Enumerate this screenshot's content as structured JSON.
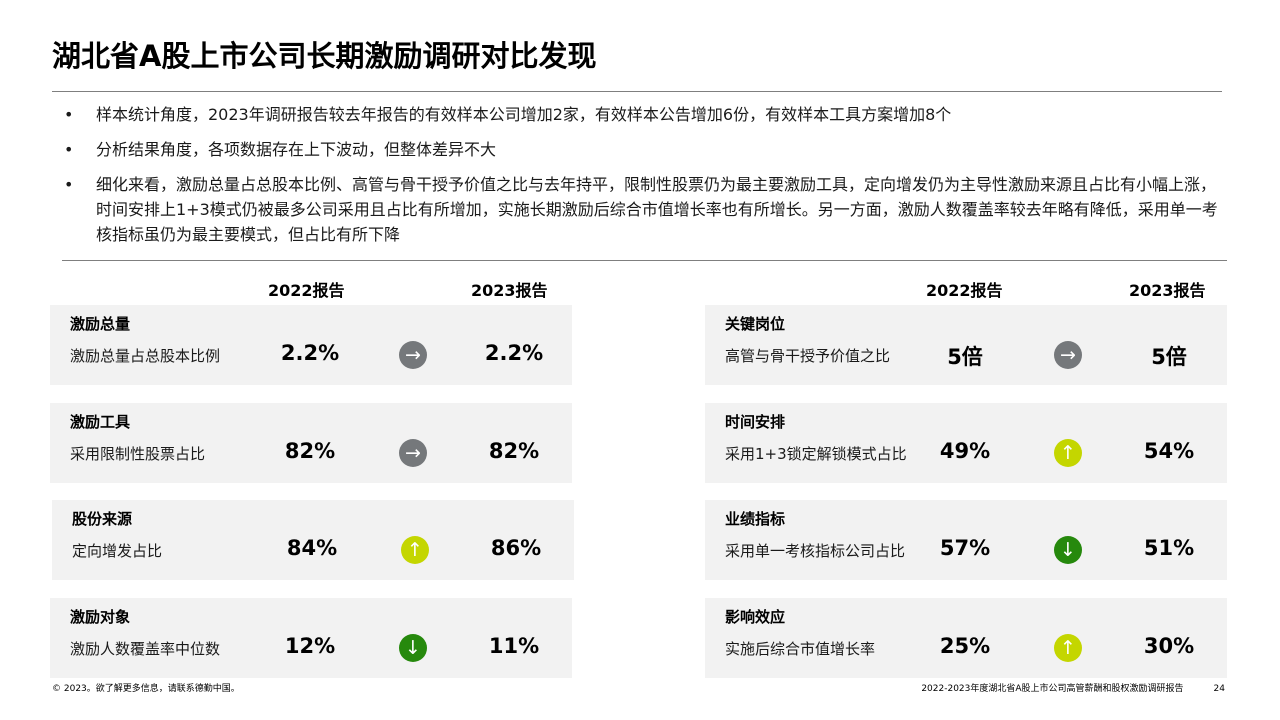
{
  "title": "湖北省A股上市公司长期激励调研对比发现",
  "bullets": [
    "样本统计角度，2023年调研报告较去年报告的有效样本公司增加2家，有效样本公告增加6份，有效样本工具方案增加8个",
    "分析结果角度，各项数据存在上下波动，但整体差异不大",
    "细化来看，激励总量占总股本比例、高管与骨干授予价值之比与去年持平，限制性股票仍为最主要激励工具，定向增发仍为主导性激励来源且占比有小幅上涨，时间安排上1+3模式仍被最多公司采用且占比有所增加，实施长期激励后综合市值增长率也有所增长。另一方面，激励人数覆盖率较去年略有降低，采用单一考核指标虽仍为最主要模式，但占比有所下降"
  ],
  "bullet_char": "•",
  "columns": {
    "y2022": "2022报告",
    "y2023": "2023报告"
  },
  "left_cards": [
    {
      "category": "激励总量",
      "metric": "激励总量占总股本比例",
      "v2022": "2.2%",
      "v2023": "2.2%",
      "trend": "flat",
      "arrow": "→"
    },
    {
      "category": "激励工具",
      "metric": "采用限制性股票占比",
      "v2022": "82%",
      "v2023": "82%",
      "trend": "flat",
      "arrow": "→"
    },
    {
      "category": "股份来源",
      "metric": "定向增发占比",
      "v2022": "84%",
      "v2023": "86%",
      "trend": "up",
      "arrow": "↑"
    },
    {
      "category": "激励对象",
      "metric": "激励人数覆盖率中位数",
      "v2022": "12%",
      "v2023": "11%",
      "trend": "down",
      "arrow": "↓"
    }
  ],
  "right_cards": [
    {
      "category": "关键岗位",
      "metric": "高管与骨干授予价值之比",
      "v2022": "5倍",
      "v2023": "5倍",
      "trend": "flat",
      "arrow": "→"
    },
    {
      "category": "时间安排",
      "metric": "采用1+3锁定解锁模式占比",
      "v2022": "49%",
      "v2023": "54%",
      "trend": "up",
      "arrow": "↑"
    },
    {
      "category": "业绩指标",
      "metric": "采用单一考核指标公司占比",
      "v2022": "57%",
      "v2023": "51%",
      "trend": "down",
      "arrow": "↓"
    },
    {
      "category": "影响效应",
      "metric": "实施后综合市值增长率",
      "v2022": "25%",
      "v2023": "30%",
      "trend": "up",
      "arrow": "↑"
    }
  ],
  "colors": {
    "flat": "#75787b",
    "up": "#c4d600",
    "down": "#26890d",
    "card_bg": "#f2f2f2"
  },
  "footer": {
    "copyright": "© 2023。欲了解更多信息，请联系德勤中国。",
    "report": "2022-2023年度湖北省A股上市公司高管薪酬和股权激励调研报告",
    "page": "24"
  }
}
